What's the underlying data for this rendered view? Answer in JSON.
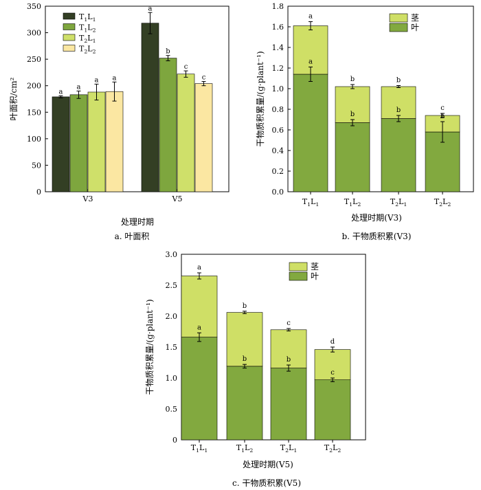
{
  "chart_data": [
    {
      "type": "bar",
      "caption": "a.  叶面积",
      "ylabel": "叶面积/cm²",
      "xlabel": "处理时期",
      "ylim": [
        0,
        350
      ],
      "yticks": [
        0,
        50,
        100,
        150,
        200,
        250,
        300,
        350
      ],
      "categories": [
        "V3",
        "V5"
      ],
      "legend_position": "top-left",
      "series": [
        {
          "name": "T1L1",
          "color": "#333f24",
          "values": [
            179,
            318
          ],
          "errors": [
            2,
            20
          ],
          "letters": [
            "a",
            "a"
          ]
        },
        {
          "name": "T1L2",
          "color": "#7ea63e",
          "values": [
            183,
            252
          ],
          "errors": [
            7,
            5
          ],
          "letters": [
            "a",
            "b"
          ]
        },
        {
          "name": "T2L1",
          "color": "#cfe06a",
          "values": [
            188,
            222
          ],
          "errors": [
            15,
            6
          ],
          "letters": [
            "a",
            "c"
          ]
        },
        {
          "name": "T2L2",
          "color": "#fbe7a2",
          "values": [
            189,
            204
          ],
          "errors": [
            18,
            4
          ],
          "letters": [
            "a",
            "c"
          ]
        }
      ]
    },
    {
      "type": "bar",
      "stacked": true,
      "caption": "b.  干物质积累(V3)",
      "ylabel": "干物质积累量/(g·plant⁻¹)",
      "xlabel": "处理时期(V3)",
      "ylim": [
        0,
        1.8
      ],
      "yticks": [
        "0.0",
        "0.2",
        "0.4",
        "0.6",
        "0.8",
        "1.0",
        "1.2",
        "1.4",
        "1.6",
        "1.8"
      ],
      "categories": [
        "T1L1",
        "T1L2",
        "T2L1",
        "T2L2"
      ],
      "legend_position": "top-right",
      "series": [
        {
          "name": "叶",
          "color": "#82a93f",
          "values": [
            1.14,
            0.67,
            0.71,
            0.58
          ],
          "errors": [
            0.07,
            0.03,
            0.03,
            0.1
          ],
          "letters": [
            "a",
            "b",
            "b",
            "b"
          ]
        },
        {
          "name": "茎",
          "color": "#cfdf66",
          "values": [
            0.47,
            0.35,
            0.31,
            0.16
          ],
          "errors": [
            0.04,
            0.02,
            0.01,
            0.02
          ],
          "letters": [
            "a",
            "b",
            "b",
            "c"
          ]
        }
      ]
    },
    {
      "type": "bar",
      "stacked": true,
      "caption": "c.  干物质积累(V5)",
      "ylabel": "干物质积累量/(g·plant⁻¹)",
      "xlabel": "处理时期(V5)",
      "ylim": [
        0,
        3.0
      ],
      "yticks": [
        "0",
        "0.5",
        "1.0",
        "1.5",
        "2.0",
        "2.5",
        "3.0"
      ],
      "categories": [
        "T1L1",
        "T1L2",
        "T2L1",
        "T2L2"
      ],
      "legend_position": "top-right",
      "series": [
        {
          "name": "叶",
          "color": "#82a93f",
          "values": [
            1.66,
            1.19,
            1.16,
            0.97
          ],
          "errors": [
            0.07,
            0.03,
            0.05,
            0.03
          ],
          "letters": [
            "a",
            "b",
            "b",
            "c"
          ]
        },
        {
          "name": "茎",
          "color": "#cfdf66",
          "values": [
            0.99,
            0.87,
            0.62,
            0.49
          ],
          "errors": [
            0.05,
            0.02,
            0.02,
            0.04
          ],
          "letters": [
            "a",
            "b",
            "c",
            "d"
          ]
        }
      ]
    }
  ]
}
